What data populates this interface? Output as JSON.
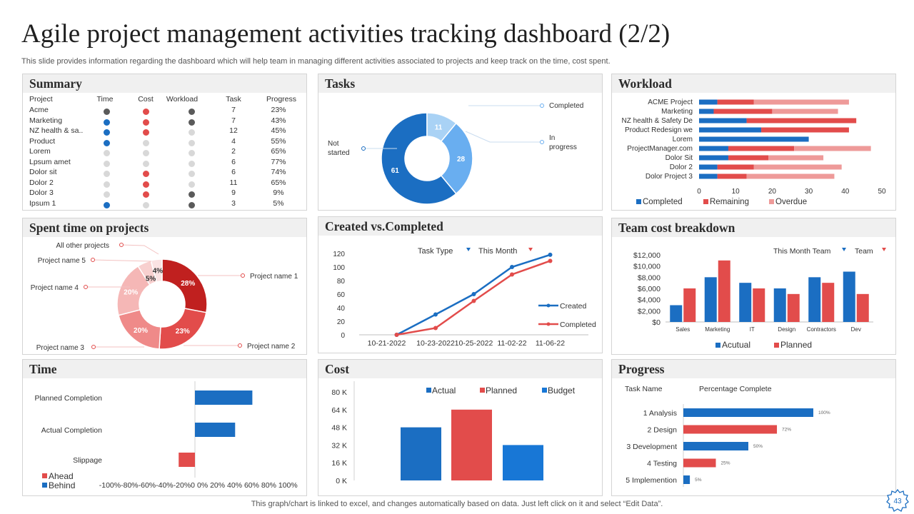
{
  "header": {
    "title": "Agile project management activities tracking dashboard (2/2)",
    "subtitle": "This slide provides information regarding the dashboard which will help team in managing different activities associated to projects and keep track on the time, cost spent.",
    "footer": "This graph/chart is linked to excel,  and changes automatically based on data. Just left click on it and select “Edit Data”.",
    "page_number": "43"
  },
  "colors": {
    "blue": "#1b6ec2",
    "red": "#e24c4b",
    "pink": "#ee9a99",
    "light_blue": "#69aef0",
    "pale_blue": "#a9d2f5",
    "grey_dot": "#d8d8d8",
    "dark_dot": "#5a5a5a"
  },
  "summary": {
    "title": "Summary",
    "columns": [
      "Project",
      "Time",
      "Cost",
      "Workload",
      "Task",
      "Progress"
    ],
    "rows": [
      {
        "project": "Acme",
        "time": "dark",
        "cost": "red",
        "workload": "dark",
        "task": "7",
        "progress": "23%"
      },
      {
        "project": "Marketing",
        "time": "blue",
        "cost": "red",
        "workload": "dark",
        "task": "7",
        "progress": "43%"
      },
      {
        "project": "NZ health & sa..",
        "time": "blue",
        "cost": "red",
        "workload": "grey",
        "task": "12",
        "progress": "45%"
      },
      {
        "project": "Product",
        "time": "blue",
        "cost": "grey",
        "workload": "grey",
        "task": "4",
        "progress": "55%"
      },
      {
        "project": "Lorem",
        "time": "grey",
        "cost": "grey",
        "workload": "grey",
        "task": "2",
        "progress": "65%"
      },
      {
        "project": "Lpsum amet",
        "time": "grey",
        "cost": "grey",
        "workload": "grey",
        "task": "6",
        "progress": "77%"
      },
      {
        "project": "Dolor sit",
        "time": "grey",
        "cost": "red",
        "workload": "grey",
        "task": "6",
        "progress": "74%"
      },
      {
        "project": "Dolor 2",
        "time": "grey",
        "cost": "red",
        "workload": "grey",
        "task": "11",
        "progress": "65%"
      },
      {
        "project": "Dolor 3",
        "time": "grey",
        "cost": "red",
        "workload": "dark",
        "task": "9",
        "progress": "9%"
      },
      {
        "project": "Ipsum 1",
        "time": "blue",
        "cost": "grey",
        "workload": "dark",
        "task": "3",
        "progress": "5%"
      }
    ]
  },
  "panel_titles": {
    "tasks": "Tasks",
    "workload": "Workload",
    "spent_time": "Spent time on projects",
    "created_completed": "Created vs.Completed",
    "team_cost": "Team cost breakdown",
    "time": "Time",
    "cost": "Cost",
    "progress": "Progress"
  },
  "chart_data": [
    {
      "id": "tasks",
      "type": "pie",
      "categories": [
        "Not started",
        "Completed",
        "In progress"
      ],
      "values": [
        61,
        11,
        28
      ],
      "labels": [
        "61",
        "11",
        "28"
      ],
      "callouts": [
        "Not started",
        "Completed",
        "In progress"
      ],
      "colors": [
        "#1b6ec2",
        "#a9d2f5",
        "#69aef0"
      ]
    },
    {
      "id": "workload",
      "type": "bar",
      "orientation": "horizontal",
      "stacked": true,
      "categories": [
        "ACME Project",
        "Marketing",
        "NZ health & Safety De",
        "Product Redesign we",
        "Lorem",
        "ProjectManager.com",
        "Dolor Sit",
        "Dolor 2",
        "Dolor Project 3"
      ],
      "series": [
        {
          "name": "Completed",
          "values": [
            5,
            4,
            13,
            17,
            30,
            8,
            8,
            5,
            5
          ]
        },
        {
          "name": "Remaining",
          "values": [
            10,
            16,
            30,
            24,
            0,
            18,
            11,
            10,
            8
          ]
        },
        {
          "name": "Overdue",
          "values": [
            26,
            18,
            0,
            0,
            0,
            21,
            15,
            24,
            24
          ]
        }
      ],
      "xlim": [
        0,
        50
      ],
      "xticks": [
        "0",
        "10",
        "20",
        "30",
        "40",
        "50"
      ],
      "legend": "bottom"
    },
    {
      "id": "spent_time",
      "type": "pie",
      "categories": [
        "Project name 1",
        "Project name 2",
        "Project name 3",
        "Project name 4",
        "Project name 5",
        "All other projects"
      ],
      "values": [
        28,
        23,
        20,
        20,
        5,
        4
      ],
      "labels": [
        "28%",
        "23%",
        "20%",
        "20%",
        "5%",
        "4%"
      ],
      "colors": [
        "#c0201f",
        "#e24c4b",
        "#ef8a89",
        "#f5b7b6",
        "#f8d0cf",
        "#fbe3e3"
      ]
    },
    {
      "id": "created_completed",
      "type": "line",
      "categories": [
        "10-21-2022",
        "10-23-2022",
        "10-25-2022",
        "11-02-22",
        "11-06-22"
      ],
      "x_steps": [
        0,
        1,
        2,
        3,
        4,
        5,
        6
      ],
      "series": [
        {
          "name": "Created",
          "values": [
            0,
            30,
            60,
            100,
            118
          ]
        },
        {
          "name": "Completed",
          "values": [
            0,
            10,
            50,
            89,
            109
          ]
        }
      ],
      "ylim": [
        0,
        120
      ],
      "yticks": [
        "0",
        "20",
        "40",
        "60",
        "80",
        "100",
        "120"
      ],
      "filters": [
        "Task Type",
        "This Month"
      ],
      "legend": "right"
    },
    {
      "id": "team_cost",
      "type": "bar",
      "categories": [
        "Sales",
        "Marketing",
        "IT",
        "Design",
        "Contractors",
        "Dev"
      ],
      "series": [
        {
          "name": "Acutual",
          "values": [
            3000,
            8000,
            7000,
            6000,
            8000,
            9000
          ]
        },
        {
          "name": "Planned",
          "values": [
            6000,
            11000,
            6000,
            5000,
            7000,
            5000
          ]
        }
      ],
      "ylim": [
        0,
        12000
      ],
      "yticks": [
        "$0",
        "$2,000",
        "$4,000",
        "$6,000",
        "$8,000",
        "$10,000",
        "$12,000"
      ],
      "filters": [
        "This Month Team",
        "Team"
      ],
      "legend": "bottom"
    },
    {
      "id": "time",
      "type": "bar",
      "orientation": "horizontal",
      "categories": [
        "Planned Completion",
        "Actual Completion",
        "Slippage"
      ],
      "values": [
        60,
        42,
        -17
      ],
      "xlim": [
        -100,
        100
      ],
      "xticks": [
        "-100%",
        "-80%",
        "-60%",
        "-40%",
        "-20%",
        "0%",
        "20%",
        "40%",
        "60%",
        "80%",
        "100%"
      ],
      "legend_items": [
        "Ahead",
        "Behind"
      ],
      "legend": "bottom-left"
    },
    {
      "id": "cost",
      "type": "bar",
      "categories": [
        "Actual",
        "Planned",
        "Budget"
      ],
      "values": [
        48000,
        64000,
        32000
      ],
      "ylim": [
        0,
        80000
      ],
      "yticks": [
        "0 K",
        "16 K",
        "32 K",
        "48 K",
        "64 K",
        "80 K"
      ],
      "legend": "top"
    },
    {
      "id": "progress",
      "type": "bar",
      "orientation": "horizontal",
      "categories": [
        "1 Analysis",
        "2 Design",
        "3 Development",
        "4 Testing",
        "5 Implemention"
      ],
      "values": [
        100,
        72,
        50,
        25,
        5
      ],
      "labels": [
        "100%",
        "72%",
        "50%",
        "25%",
        "5%"
      ],
      "colors": [
        "#1b6ec2",
        "#e24c4b",
        "#1b6ec2",
        "#e24c4b",
        "#1b6ec2"
      ],
      "column_headers": [
        "Task Name",
        "Percentage Complete"
      ],
      "xlim": [
        0,
        100
      ]
    }
  ]
}
